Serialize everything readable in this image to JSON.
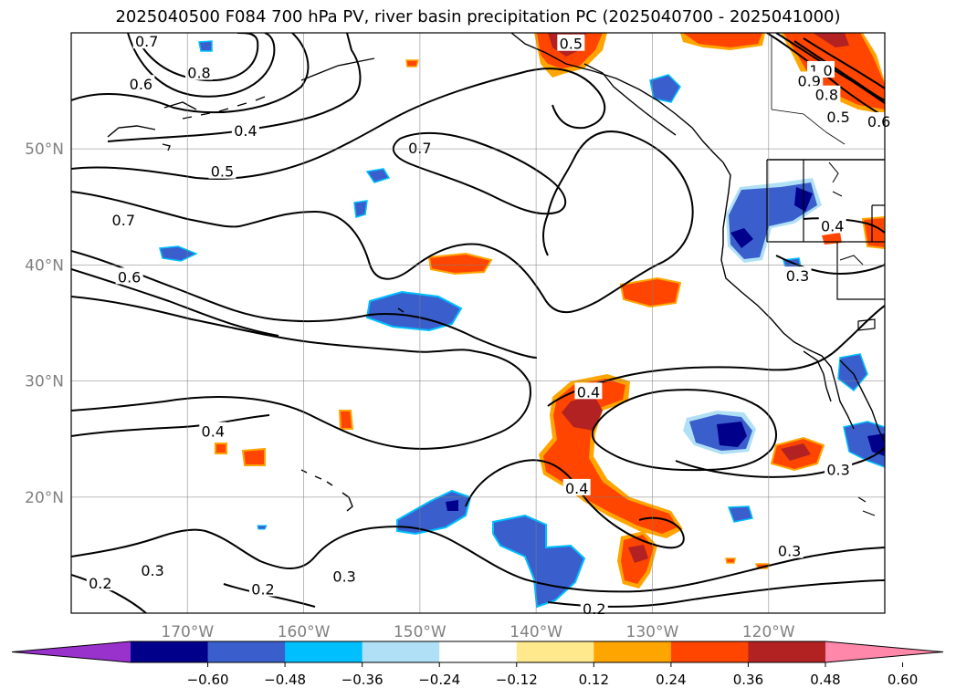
{
  "title": "2025040500 F084 700 hPa PV, river basin precipitation PC (2025040700 - 2025041000)",
  "chart_data": {
    "type": "map-contour",
    "title": "2025040500 F084 700 hPa PV, river basin precipitation PC (2025040700 - 2025041000)",
    "lon_range": [
      -180,
      -110
    ],
    "lat_range": [
      10,
      60
    ],
    "lat_ticks": [
      {
        "value": 20,
        "label": "20°N"
      },
      {
        "value": 30,
        "label": "30°N"
      },
      {
        "value": 40,
        "label": "40°N"
      },
      {
        "value": 50,
        "label": "50°N"
      }
    ],
    "lon_ticks": [
      {
        "value": -170,
        "label": "170°W"
      },
      {
        "value": -160,
        "label": "160°W"
      },
      {
        "value": -150,
        "label": "150°W"
      },
      {
        "value": -140,
        "label": "140°W"
      },
      {
        "value": -130,
        "label": "130°W"
      },
      {
        "value": -120,
        "label": "120°W"
      }
    ],
    "grid": true,
    "contour_labels": [
      {
        "text": "0.7",
        "lon": -173.5,
        "lat": 59.2
      },
      {
        "text": "0.8",
        "lon": -169.0,
        "lat": 56.5
      },
      {
        "text": "0.6",
        "lon": -174.0,
        "lat": 55.5
      },
      {
        "text": "0.4",
        "lon": -165.0,
        "lat": 51.5
      },
      {
        "text": "0.5",
        "lon": -167.0,
        "lat": 48.0
      },
      {
        "text": "0.7",
        "lon": -175.5,
        "lat": 43.8
      },
      {
        "text": "0.6",
        "lon": -175.0,
        "lat": 38.9
      },
      {
        "text": "0.7",
        "lon": -150.0,
        "lat": 50.0
      },
      {
        "text": "0.5",
        "lon": -137.0,
        "lat": 59.0
      },
      {
        "text": "1.0",
        "lon": -115.5,
        "lat": 56.7
      },
      {
        "text": "0.9",
        "lon": -116.5,
        "lat": 55.8
      },
      {
        "text": "0.8",
        "lon": -115.0,
        "lat": 54.6
      },
      {
        "text": "0.5",
        "lon": -114.0,
        "lat": 52.7
      },
      {
        "text": "0.6",
        "lon": -110.5,
        "lat": 52.3
      },
      {
        "text": "0.4",
        "lon": -114.5,
        "lat": 43.3
      },
      {
        "text": "0.3",
        "lon": -117.5,
        "lat": 39.0
      },
      {
        "text": "0.4",
        "lon": -135.5,
        "lat": 29.0
      },
      {
        "text": "0.4",
        "lon": -136.5,
        "lat": 20.7
      },
      {
        "text": "0.4",
        "lon": -167.8,
        "lat": 25.6
      },
      {
        "text": "0.3",
        "lon": -114.0,
        "lat": 22.3
      },
      {
        "text": "0.3",
        "lon": -118.2,
        "lat": 15.3
      },
      {
        "text": "0.3",
        "lon": -173.0,
        "lat": 13.6
      },
      {
        "text": "0.2",
        "lon": -177.5,
        "lat": 12.5
      },
      {
        "text": "0.2",
        "lon": -163.5,
        "lat": 12.0
      },
      {
        "text": "0.3",
        "lon": -156.5,
        "lat": 13.1
      },
      {
        "text": "0.2",
        "lon": -135.0,
        "lat": 10.3
      }
    ],
    "colorbar": {
      "extend": "both",
      "ticks": [
        "−0.60",
        "−0.48",
        "−0.36",
        "−0.24",
        "−0.12",
        "0.12",
        "0.24",
        "0.36",
        "0.48",
        "0.60"
      ],
      "colors": [
        "#9932cc",
        "#00008b",
        "#3a5fcd",
        "#00bfff",
        "#b0e0f5",
        "#ffffff",
        "#ffe98c",
        "#ffa500",
        "#ff4500",
        "#b22222",
        "#ff88aa"
      ]
    }
  }
}
